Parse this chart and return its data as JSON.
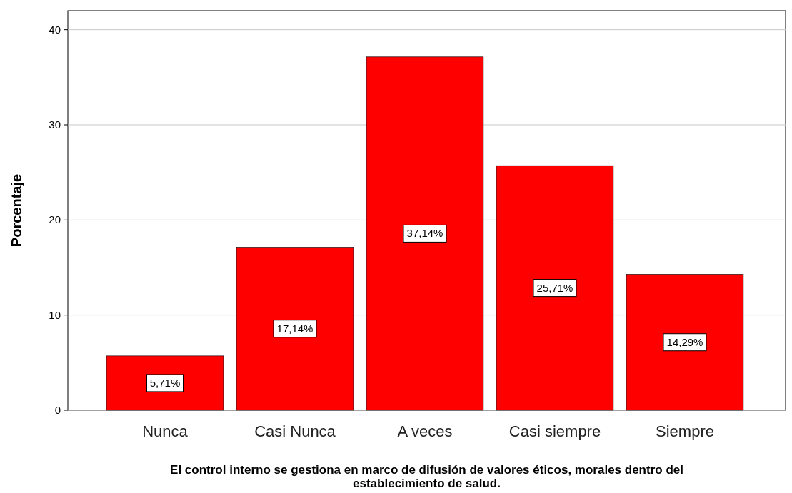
{
  "chart_data": {
    "type": "bar",
    "categories": [
      "Nunca",
      "Casi Nunca",
      "A veces",
      "Casi siempre",
      "Siempre"
    ],
    "values": [
      5.71,
      17.14,
      37.14,
      25.71,
      14.29
    ],
    "value_labels": [
      "5,71%",
      "17,14%",
      "37,14%",
      "25,71%",
      "14,29%"
    ],
    "color": "#ff0000",
    "ylabel": "Porcentaje",
    "xlabel": "El control interno se gestiona en marco de difusión de valores éticos, morales dentro del establecimiento de salud.",
    "ylim": [
      0,
      42
    ],
    "yticks": [
      0,
      10,
      20,
      30,
      40
    ],
    "grid": "y"
  }
}
